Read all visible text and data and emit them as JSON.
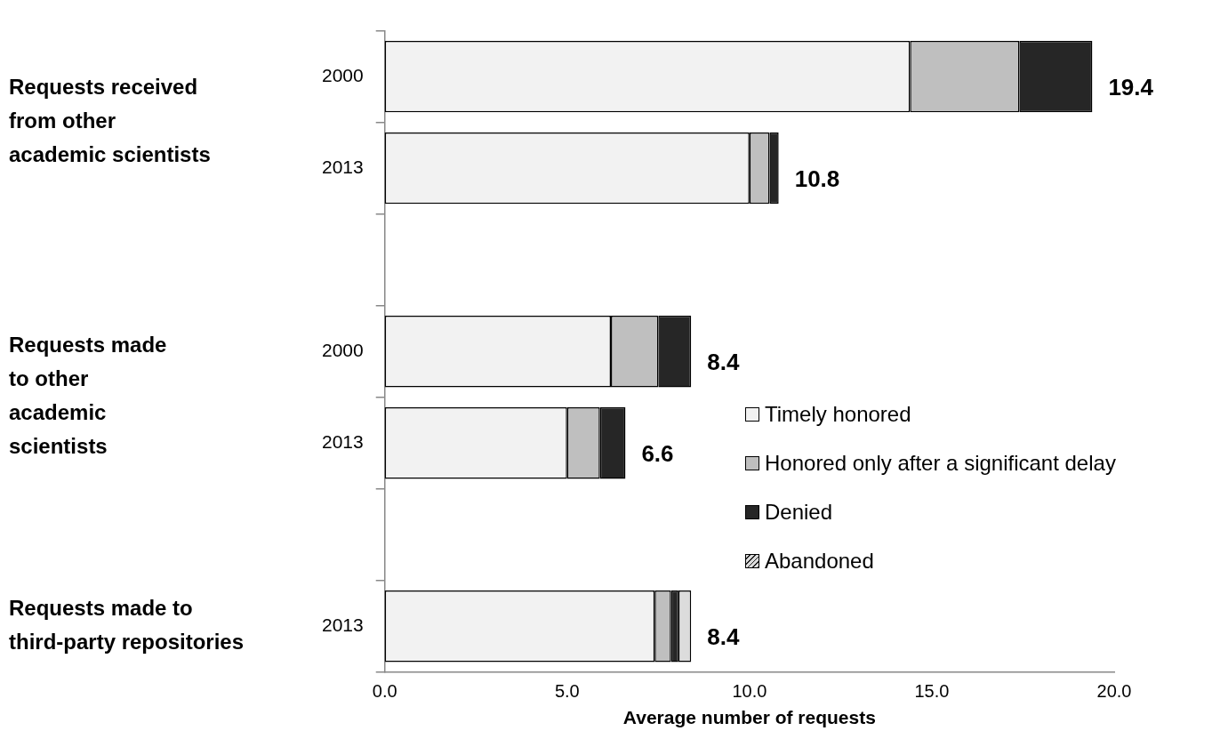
{
  "chart_data": {
    "type": "bar",
    "orientation": "horizontal",
    "stacked": true,
    "xlabel": "Average number of requests",
    "categories": [
      "2000",
      "2013",
      null,
      "2000",
      "2013",
      null,
      "2013"
    ],
    "series": [
      {
        "name": "Timely honored",
        "color": "#f2f2f2",
        "values": [
          14.4,
          10.0,
          null,
          6.2,
          5.0,
          null,
          7.4
        ]
      },
      {
        "name": "Honored only after a significant delay",
        "color": "#bfbfbf",
        "values": [
          3.0,
          0.55,
          null,
          1.3,
          0.9,
          null,
          0.45
        ]
      },
      {
        "name": "Denied",
        "color": "#262626",
        "values": [
          2.0,
          0.25,
          null,
          0.9,
          0.7,
          null,
          0.2
        ]
      },
      {
        "name": "Abandoned",
        "color": "#dcdcdc",
        "values": [
          null,
          null,
          null,
          null,
          null,
          null,
          0.35
        ]
      }
    ],
    "totals": [
      "19.4",
      "10.8",
      null,
      "8.4",
      "6.6",
      null,
      "8.4"
    ],
    "annotations": [
      "Requests received\nfrom other\nacademic scientists",
      "Requests made\nto other\nacademic\nscientists",
      "Requests made to\nthird-party repositories"
    ],
    "xlim": [
      0,
      20
    ],
    "xticks": [
      {
        "value": 0,
        "label": "0.0"
      },
      {
        "value": 5,
        "label": "5.0"
      },
      {
        "value": 10,
        "label": "10.0"
      },
      {
        "value": 15,
        "label": "15.0"
      },
      {
        "value": 20,
        "label": "20.0"
      }
    ],
    "legend": "right",
    "grid": false
  }
}
